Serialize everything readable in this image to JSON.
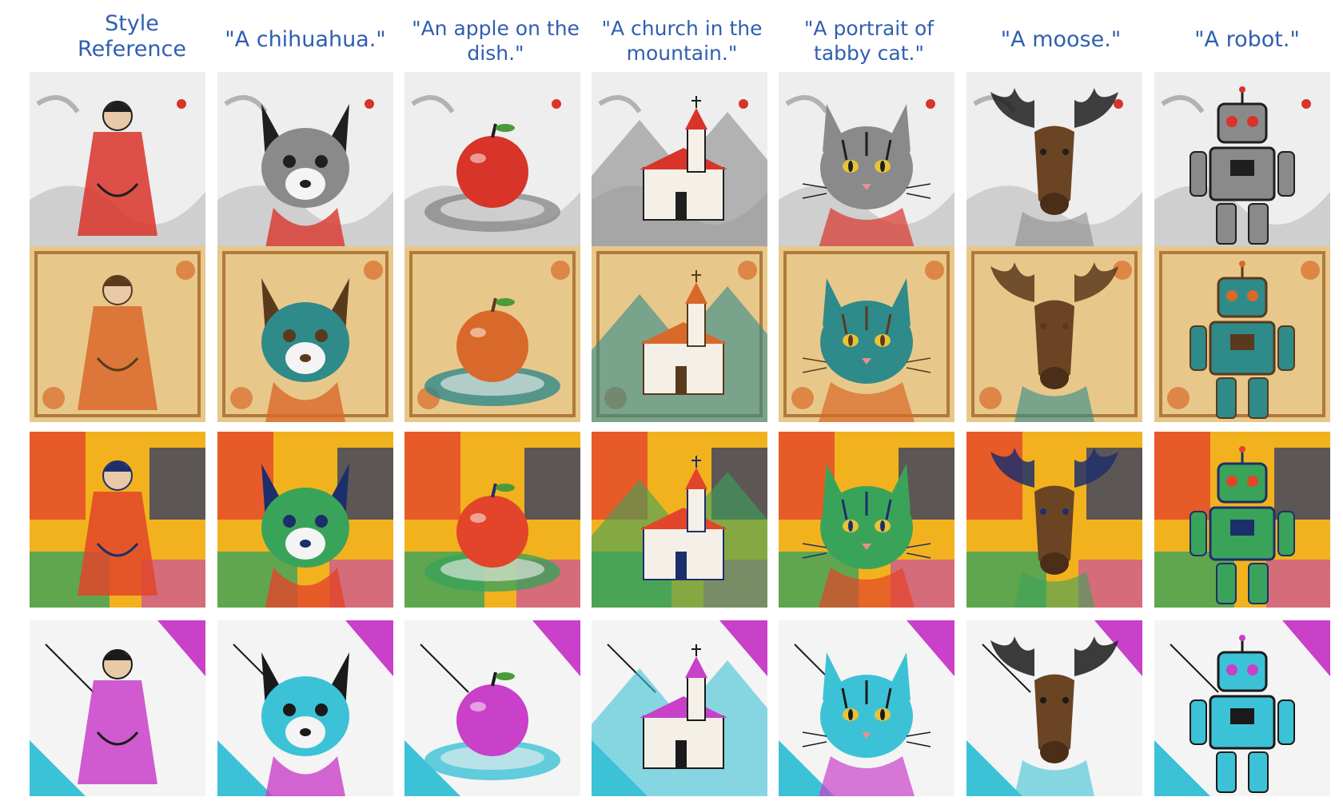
{
  "header": {
    "style_reference": [
      "Style",
      "Reference"
    ],
    "prompts": [
      {
        "lines": [
          "\"A chihuahua.\""
        ]
      },
      {
        "lines": [
          "\"An apple on the",
          "dish.\""
        ]
      },
      {
        "lines": [
          "\"A church in the",
          "mountain.\""
        ]
      },
      {
        "lines": [
          "\"A portrait of",
          "tabby cat.\""
        ]
      },
      {
        "lines": [
          "\"A moose.\""
        ]
      },
      {
        "lines": [
          "\"A robot.\""
        ]
      }
    ]
  },
  "rows": [
    {
      "style": "ink-wash",
      "colors": {
        "bg": "#eeeeee",
        "accent": "#d8342a",
        "dark": "#1f1f1f",
        "mid": "#8a8a8a"
      }
    },
    {
      "style": "egyptian-papyrus",
      "colors": {
        "bg": "#e8c88a",
        "accent": "#d9692a",
        "dark": "#5a3a1c",
        "mid": "#2f8a8a"
      }
    },
    {
      "style": "expressionist",
      "colors": {
        "bg": "#f2b21e",
        "accent": "#e2452a",
        "dark": "#1d2f6b",
        "mid": "#3aa35a"
      }
    },
    {
      "style": "pop-sketch",
      "colors": {
        "bg": "#f4f4f4",
        "accent": "#c940c9",
        "dark": "#1a1a1a",
        "mid": "#3cc2d6"
      }
    }
  ],
  "subjects": [
    "style-reference",
    "chihuahua",
    "apple",
    "church",
    "cat",
    "moose",
    "robot"
  ]
}
